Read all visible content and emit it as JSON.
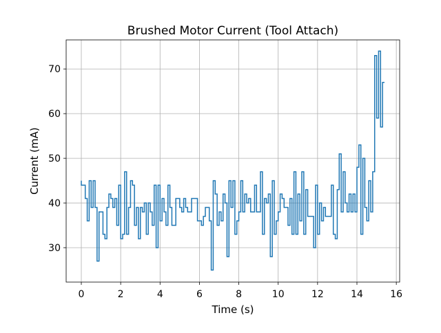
{
  "chart_data": {
    "type": "step",
    "title": "Brushed Motor Current (Tool Attach)",
    "x_label": "Time (s)",
    "y_label": "Current (mA)",
    "color": "#1f77b4",
    "grid": true,
    "xlim": [
      -0.77,
      16.17
    ],
    "ylim": [
      22.3,
      76.5
    ],
    "xticks": [
      0,
      2,
      4,
      6,
      8,
      10,
      12,
      14,
      16
    ],
    "yticks": [
      30,
      40,
      50,
      60,
      70
    ],
    "x": [
      0.0,
      0.1,
      0.2,
      0.3,
      0.4,
      0.5,
      0.6,
      0.7,
      0.8,
      0.9,
      1.0,
      1.1,
      1.2,
      1.3,
      1.4,
      1.5,
      1.6,
      1.7,
      1.8,
      1.9,
      2.0,
      2.1,
      2.2,
      2.3,
      2.4,
      2.5,
      2.6,
      2.7,
      2.8,
      2.9,
      3.0,
      3.1,
      3.2,
      3.3,
      3.4,
      3.5,
      3.6,
      3.7,
      3.8,
      3.9,
      4.0,
      4.1,
      4.2,
      4.3,
      4.4,
      4.5,
      4.6,
      4.7,
      4.8,
      4.9,
      5.0,
      5.1,
      5.2,
      5.3,
      5.4,
      5.5,
      5.6,
      5.7,
      5.8,
      5.9,
      6.0,
      6.1,
      6.2,
      6.3,
      6.4,
      6.5,
      6.6,
      6.7,
      6.8,
      6.9,
      7.0,
      7.1,
      7.2,
      7.3,
      7.4,
      7.5,
      7.6,
      7.7,
      7.8,
      7.9,
      8.0,
      8.1,
      8.2,
      8.3,
      8.4,
      8.5,
      8.6,
      8.7,
      8.8,
      8.9,
      9.0,
      9.1,
      9.2,
      9.3,
      9.4,
      9.5,
      9.6,
      9.7,
      9.8,
      9.9,
      10.0,
      10.1,
      10.2,
      10.3,
      10.4,
      10.5,
      10.6,
      10.7,
      10.8,
      10.9,
      11.0,
      11.1,
      11.2,
      11.3,
      11.4,
      11.5,
      11.6,
      11.7,
      11.8,
      11.9,
      12.0,
      12.1,
      12.2,
      12.3,
      12.4,
      12.5,
      12.6,
      12.7,
      12.8,
      12.9,
      13.0,
      13.1,
      13.2,
      13.3,
      13.4,
      13.5,
      13.6,
      13.7,
      13.8,
      13.9,
      14.0,
      14.1,
      14.2,
      14.3,
      14.4,
      14.5,
      14.6,
      14.7,
      14.8,
      14.9,
      15.0,
      15.1,
      15.2,
      15.3,
      15.4
    ],
    "values": [
      45,
      44,
      44,
      41,
      36,
      45,
      39,
      45,
      39,
      27,
      38,
      38,
      33,
      32,
      39,
      42,
      41,
      39,
      41,
      35,
      44,
      32,
      33,
      47,
      33,
      39,
      45,
      44,
      35,
      39,
      32,
      39,
      38,
      40,
      33,
      40,
      38,
      35,
      44,
      30,
      44,
      36,
      41,
      38,
      35,
      44,
      39,
      35,
      35,
      41,
      41,
      39,
      38,
      41,
      39,
      38,
      38,
      41,
      41,
      41,
      36,
      36,
      35,
      37,
      39,
      39,
      36,
      25,
      45,
      42,
      35,
      38,
      36,
      42,
      40,
      28,
      45,
      39,
      45,
      33,
      36,
      38,
      45,
      38,
      42,
      40,
      41,
      38,
      38,
      44,
      38,
      38,
      47,
      33,
      41,
      40,
      42,
      28,
      45,
      33,
      36,
      38,
      42,
      41,
      39,
      39,
      35,
      41,
      33,
      47,
      33,
      42,
      36,
      47,
      33,
      43,
      37,
      37,
      37,
      30,
      44,
      33,
      40,
      36,
      39,
      37,
      37,
      37,
      44,
      33,
      32,
      43,
      51,
      38,
      47,
      40,
      38,
      42,
      38,
      42,
      38,
      48,
      53,
      33,
      50,
      39,
      36,
      45,
      38,
      47,
      73,
      59,
      74,
      57,
      67
    ]
  }
}
